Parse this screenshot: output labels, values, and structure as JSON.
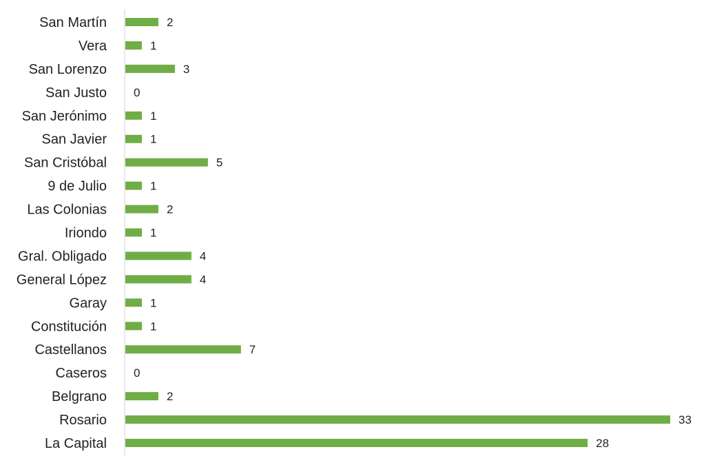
{
  "chart_data": {
    "type": "bar",
    "orientation": "horizontal",
    "title": "",
    "xlabel": "",
    "ylabel": "",
    "categories": [
      "San Martín",
      "Vera",
      "San Lorenzo",
      "San Justo",
      "San Jerónimo",
      "San Javier",
      "San Cristóbal",
      "9 de Julio",
      "Las Colonias",
      "Iriondo",
      "Gral. Obligado",
      "General López",
      "Garay",
      "Constitución",
      "Castellanos",
      "Caseros",
      "Belgrano",
      "Rosario",
      "La Capital"
    ],
    "values": [
      2,
      1,
      3,
      0,
      1,
      1,
      5,
      1,
      2,
      1,
      4,
      4,
      1,
      1,
      7,
      0,
      2,
      33,
      28
    ],
    "xlim": [
      0,
      33
    ],
    "grid": false,
    "legend": "none",
    "data_labels": true,
    "colors": {
      "bar": "#70ad47",
      "axis": "#d0d0d0"
    }
  }
}
